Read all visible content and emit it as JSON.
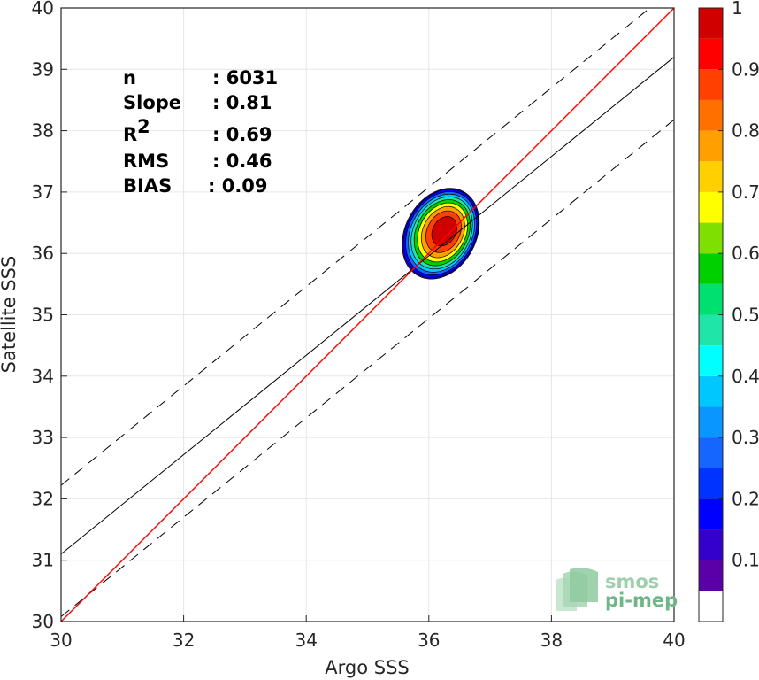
{
  "chart_data": {
    "type": "scatter",
    "subtype": "density-contour",
    "xlabel": "Argo SSS",
    "ylabel": "Satellite SSS",
    "xlim": [
      30,
      40
    ],
    "ylim": [
      30,
      40
    ],
    "xticks": [
      "30",
      "32",
      "34",
      "36",
      "38",
      "40"
    ],
    "yticks": [
      "30",
      "31",
      "32",
      "33",
      "34",
      "35",
      "36",
      "37",
      "38",
      "39",
      "40"
    ],
    "grid": true,
    "stats": [
      {
        "label": "n",
        "value": ": 6031"
      },
      {
        "label": "Slope",
        "value": ": 0.81"
      },
      {
        "label": "R",
        "sup": "2",
        "value": ": 0.69"
      },
      {
        "label": "RMS",
        "value": ": 0.46"
      },
      {
        "label": "BIAS",
        "value": ": 0.09"
      }
    ],
    "lines": {
      "identity": {
        "slope": 1,
        "intercept": 0,
        "color": "#ff0000"
      },
      "fit": {
        "slope": 0.81,
        "intercept": 6.8,
        "color": "#000000"
      },
      "upper_band": {
        "slope": 0.81,
        "intercept": 7.92,
        "color": "#000000",
        "dashed": true
      },
      "lower_band": {
        "slope": 0.81,
        "intercept": 5.78,
        "color": "#000000",
        "dashed": true
      }
    },
    "density": {
      "center": [
        36.28,
        36.38
      ],
      "peak": 1.0,
      "levels": [
        0.05,
        0.1,
        0.2,
        0.3,
        0.4,
        0.5,
        0.6,
        0.7,
        0.8,
        0.9
      ]
    },
    "colorbar": {
      "ticks": [
        "0.1",
        "0.2",
        "0.3",
        "0.4",
        "0.5",
        "0.6",
        "0.7",
        "0.8",
        "0.9",
        "1"
      ],
      "tick_values": [
        0.1,
        0.2,
        0.3,
        0.4,
        0.5,
        0.6,
        0.7,
        0.8,
        0.9,
        1.0
      ],
      "range": [
        0,
        1
      ],
      "colors": [
        "#ffffff",
        "#5a00a8",
        "#3300cc",
        "#0000ff",
        "#0033ff",
        "#1466ff",
        "#0a96ff",
        "#00c8ff",
        "#00ffff",
        "#1fe6a8",
        "#00e070",
        "#00d000",
        "#7fe000",
        "#ffff00",
        "#ffd000",
        "#ffa000",
        "#ff7000",
        "#ff4000",
        "#ff0000",
        "#d00000",
        "#8b0000"
      ],
      "edges": [
        0,
        0.05,
        0.1,
        0.15,
        0.2,
        0.25,
        0.3,
        0.35,
        0.4,
        0.45,
        0.5,
        0.55,
        0.6,
        0.65,
        0.7,
        0.75,
        0.8,
        0.85,
        0.9,
        0.95,
        1.0
      ]
    }
  },
  "logo": {
    "line1": "smos",
    "line2": "pi-mep"
  }
}
